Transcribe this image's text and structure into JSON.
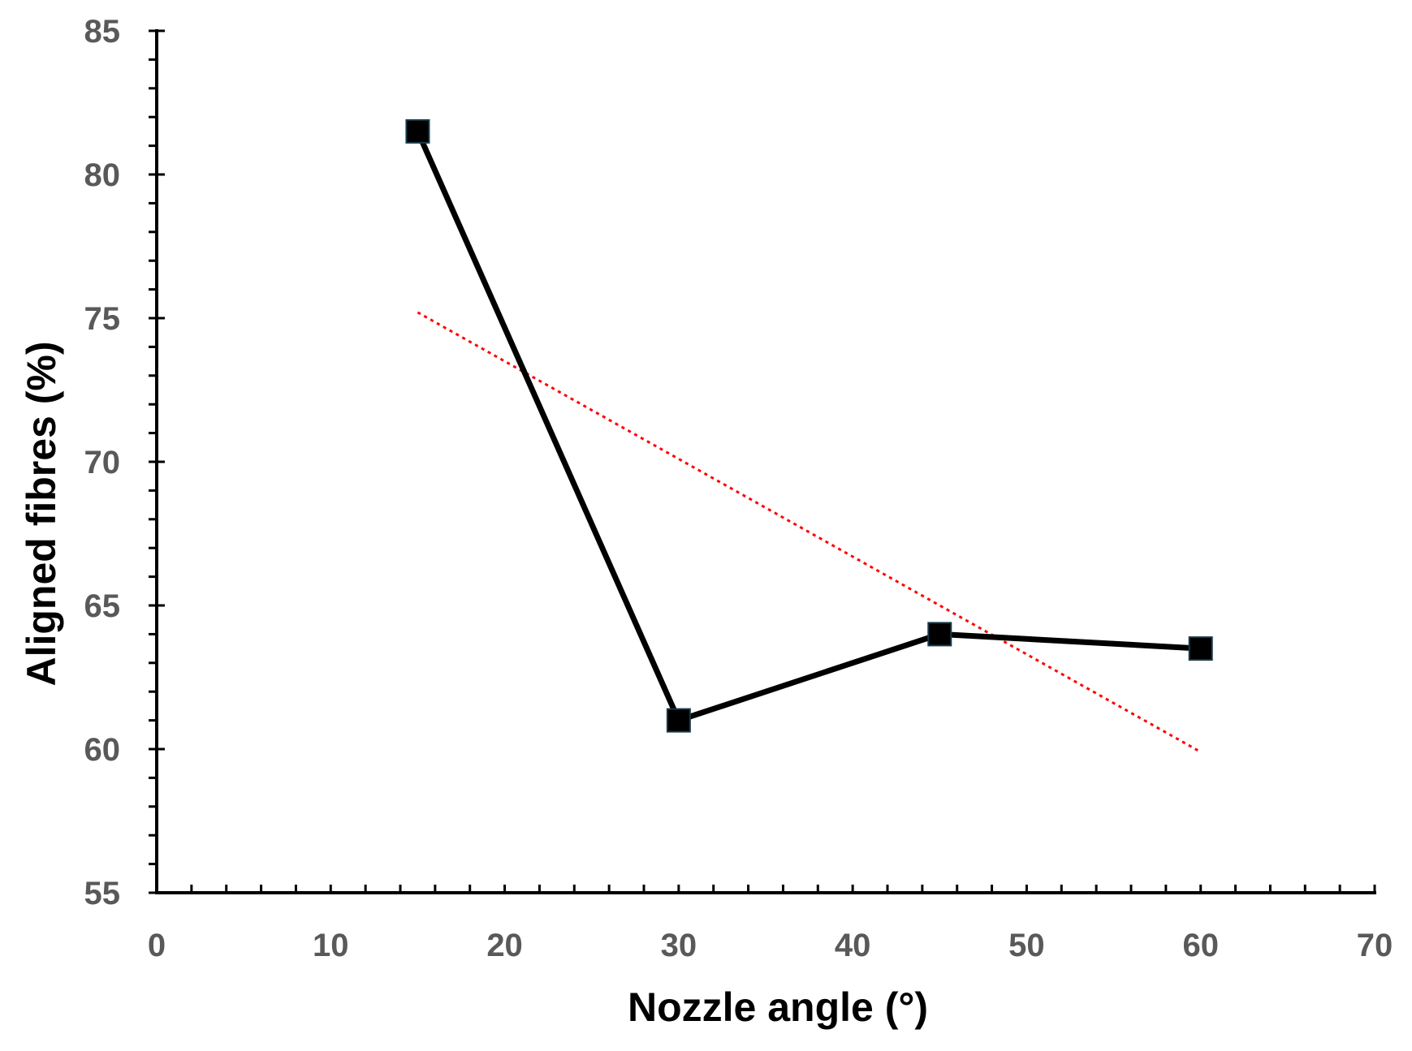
{
  "chart_data": {
    "type": "line",
    "title": "",
    "xlabel": "Nozzle angle (°)",
    "ylabel": "Aligned fibres (%)",
    "xlim": [
      0,
      70
    ],
    "ylim": [
      55,
      85
    ],
    "x_ticks": [
      0,
      10,
      20,
      30,
      40,
      50,
      60,
      70
    ],
    "y_ticks": [
      55,
      60,
      65,
      70,
      75,
      80,
      85
    ],
    "grid": false,
    "legend": "none",
    "series": [
      {
        "x": [
          15,
          30,
          45,
          60
        ],
        "y": [
          81.5,
          61.0,
          64.0,
          63.5
        ],
        "marker": "square",
        "color": "#000000"
      }
    ],
    "trendline": {
      "style": "dotted",
      "color": "#ff0000",
      "x": [
        15,
        60
      ],
      "y": [
        75.2,
        59.9
      ]
    }
  }
}
